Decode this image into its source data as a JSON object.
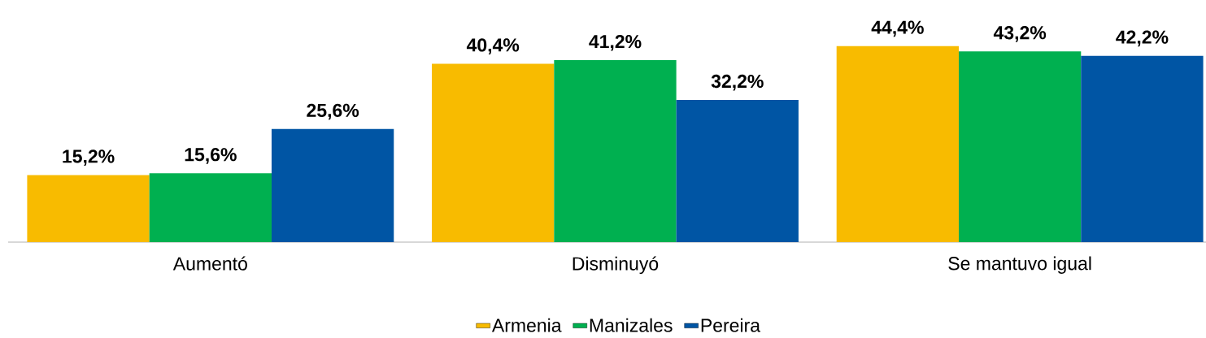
{
  "chart_data": {
    "type": "bar",
    "categories": [
      "Aumentó",
      "Disminuyó",
      "Se mantuvo igual"
    ],
    "series": [
      {
        "name": "Armenia",
        "color": "#f8bb00",
        "values": [
          15.2,
          40.4,
          44.4
        ],
        "value_labels": [
          "15,2%",
          "40,4%",
          "44,4%"
        ]
      },
      {
        "name": "Manizales",
        "color": "#00b050",
        "values": [
          15.6,
          41.2,
          43.2
        ],
        "value_labels": [
          "15,6%",
          "41,2%",
          "43,2%"
        ]
      },
      {
        "name": "Pereira",
        "color": "#0055a4",
        "values": [
          25.6,
          32.2,
          42.2
        ],
        "value_labels": [
          "25,6%",
          "32,2%",
          "42,2%"
        ]
      }
    ],
    "legend": "bottom"
  }
}
